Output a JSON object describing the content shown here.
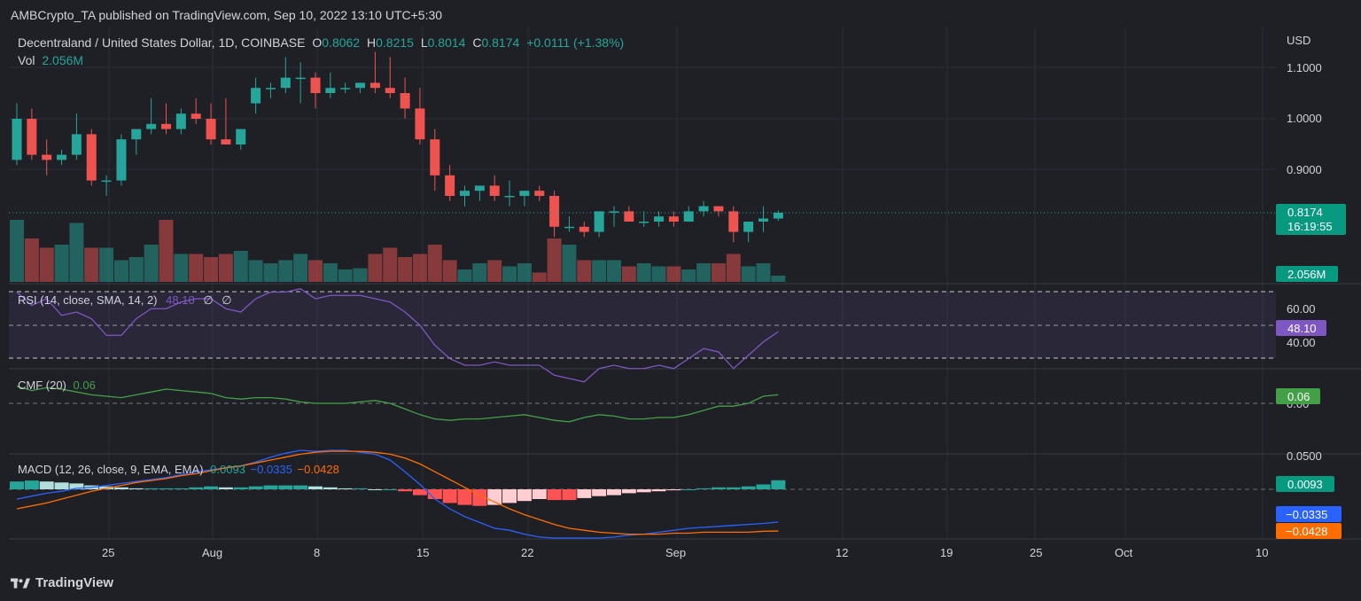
{
  "header": {
    "publisher": "AMBCrypto_TA published on TradingView.com, Sep 10, 2022 13:10 UTC+5:30"
  },
  "footer": {
    "brand": "TradingView",
    "logo_icon": "tradingview-logo-icon"
  },
  "legend": {
    "symbol": "Decentraland / United States Dollar, 1D, COINBASE",
    "o_label": "O",
    "o": "0.8062",
    "h_label": "H",
    "h": "0.8215",
    "l_label": "L",
    "l": "0.8014",
    "c_label": "C",
    "c": "0.8174",
    "change": "+0.0111 (+1.38%)",
    "vol_label": "Vol",
    "vol": "2.056M"
  },
  "currency": "USD",
  "price_axis": {
    "ticks": [
      "1.1000",
      "1.0000",
      "0.9000"
    ],
    "last_price": "0.8174",
    "countdown": "16:19:55",
    "last_volume": "2.056M"
  },
  "rsi": {
    "label": "RSI (14, close, SMA, 14, 2)",
    "value": "48.10",
    "na1": "∅",
    "na2": "∅",
    "ticks": [
      "60.00",
      "40.00"
    ]
  },
  "cmf": {
    "label": "CMF (20)",
    "value": "0.06",
    "tick": "0.00"
  },
  "macd": {
    "label": "MACD (12, 26, close, 9, EMA, EMA)",
    "hist_value": "0.0093",
    "macd_value": "−0.0335",
    "signal_value": "−0.0428",
    "tick": "0.0500",
    "hist_label": "0.0093",
    "macd_label": "−0.0335",
    "signal_label": "−0.0428"
  },
  "colors": {
    "up": "#26a69a",
    "down": "#ef5350",
    "rsi": "#7e57c2",
    "cmf": "#43a047",
    "macd": "#2962ff",
    "signal": "#ff6d00",
    "bg": "#1f2026"
  },
  "x_axis": {
    "labels": [
      "25",
      "Aug",
      "8",
      "15",
      "22",
      "Sep",
      "12",
      "19",
      "25",
      "Oct",
      "10"
    ]
  },
  "chart_data": [
    {
      "type": "candlestick",
      "title": "Decentraland / United States Dollar, 1D, COINBASE",
      "x": [
        "Jul 21",
        "Jul 22",
        "Jul 23",
        "Jul 24",
        "Jul 25",
        "Jul 26",
        "Jul 27",
        "Jul 28",
        "Jul 29",
        "Jul 30",
        "Jul 31",
        "Aug 1",
        "Aug 2",
        "Aug 3",
        "Aug 4",
        "Aug 5",
        "Aug 6",
        "Aug 7",
        "Aug 8",
        "Aug 9",
        "Aug 10",
        "Aug 11",
        "Aug 12",
        "Aug 13",
        "Aug 14",
        "Aug 15",
        "Aug 16",
        "Aug 17",
        "Aug 18",
        "Aug 19",
        "Aug 20",
        "Aug 21",
        "Aug 22",
        "Aug 23",
        "Aug 24",
        "Aug 25",
        "Aug 26",
        "Aug 27",
        "Aug 28",
        "Aug 29",
        "Aug 30",
        "Aug 31",
        "Sep 1",
        "Sep 2",
        "Sep 3",
        "Sep 4",
        "Sep 5",
        "Sep 6",
        "Sep 7",
        "Sep 8",
        "Sep 9",
        "Sep 10"
      ],
      "open": [
        0.92,
        1.0,
        0.93,
        0.92,
        0.93,
        0.97,
        0.88,
        0.88,
        0.96,
        0.98,
        0.99,
        0.98,
        1.01,
        1.0,
        0.96,
        0.95,
        1.03,
        1.06,
        1.06,
        1.08,
        1.08,
        1.05,
        1.06,
        1.06,
        1.07,
        1.06,
        1.05,
        1.02,
        0.96,
        0.89,
        0.85,
        0.86,
        0.87,
        0.85,
        0.85,
        0.86,
        0.85,
        0.79,
        0.79,
        0.78,
        0.82,
        0.82,
        0.8,
        0.8,
        0.81,
        0.8,
        0.82,
        0.83,
        0.82,
        0.78,
        0.8,
        0.806
      ],
      "high": [
        1.03,
        1.02,
        0.96,
        0.94,
        1.01,
        0.98,
        0.89,
        0.97,
        0.98,
        1.04,
        1.03,
        1.02,
        1.04,
        1.03,
        1.04,
        0.98,
        1.08,
        1.07,
        1.12,
        1.11,
        1.09,
        1.09,
        1.07,
        1.07,
        1.13,
        1.12,
        1.08,
        1.06,
        0.98,
        0.91,
        0.87,
        0.87,
        0.89,
        0.88,
        0.86,
        0.87,
        0.86,
        0.81,
        0.8,
        0.82,
        0.83,
        0.83,
        0.82,
        0.82,
        0.82,
        0.83,
        0.84,
        0.83,
        0.83,
        0.8,
        0.83,
        0.8215
      ],
      "low": [
        0.91,
        0.92,
        0.89,
        0.91,
        0.92,
        0.87,
        0.85,
        0.87,
        0.93,
        0.97,
        0.97,
        0.97,
        0.99,
        0.95,
        0.95,
        0.94,
        1.01,
        1.04,
        1.05,
        1.03,
        1.02,
        1.04,
        1.05,
        1.05,
        1.05,
        1.04,
        1.0,
        0.95,
        0.86,
        0.84,
        0.83,
        0.84,
        0.84,
        0.83,
        0.83,
        0.84,
        0.77,
        0.78,
        0.77,
        0.77,
        0.79,
        0.8,
        0.79,
        0.79,
        0.79,
        0.8,
        0.81,
        0.81,
        0.76,
        0.76,
        0.78,
        0.8014
      ],
      "close": [
        1.0,
        0.93,
        0.92,
        0.93,
        0.97,
        0.88,
        0.88,
        0.96,
        0.98,
        0.99,
        0.98,
        1.01,
        1.0,
        0.96,
        0.95,
        0.98,
        1.06,
        1.06,
        1.08,
        1.08,
        1.05,
        1.06,
        1.06,
        1.07,
        1.06,
        1.05,
        1.02,
        0.96,
        0.89,
        0.85,
        0.86,
        0.87,
        0.85,
        0.85,
        0.86,
        0.85,
        0.79,
        0.79,
        0.78,
        0.82,
        0.82,
        0.8,
        0.8,
        0.81,
        0.8,
        0.82,
        0.83,
        0.82,
        0.78,
        0.8,
        0.806,
        0.8174
      ],
      "volume_relative": [
        1.0,
        0.7,
        0.55,
        0.6,
        0.95,
        0.55,
        0.55,
        0.35,
        0.4,
        0.6,
        1.0,
        0.45,
        0.45,
        0.4,
        0.45,
        0.5,
        0.35,
        0.3,
        0.35,
        0.45,
        0.35,
        0.3,
        0.2,
        0.22,
        0.45,
        0.55,
        0.4,
        0.45,
        0.6,
        0.35,
        0.2,
        0.3,
        0.35,
        0.25,
        0.3,
        0.15,
        0.7,
        0.6,
        0.35,
        0.35,
        0.35,
        0.25,
        0.3,
        0.25,
        0.25,
        0.2,
        0.3,
        0.3,
        0.45,
        0.25,
        0.3,
        0.1
      ],
      "ylim": [
        0.77,
        1.14
      ],
      "currency": "USD"
    },
    {
      "type": "line",
      "title": "RSI (14, close, SMA, 14, 2)",
      "values": [
        60,
        56,
        58,
        53,
        54,
        52,
        47,
        47,
        52,
        55,
        55,
        57,
        58,
        58,
        55,
        54,
        58,
        60,
        60,
        61,
        58,
        59,
        59,
        59,
        58,
        57,
        54,
        50,
        44,
        40,
        38,
        38,
        39,
        38,
        38,
        38,
        35,
        34,
        33,
        37,
        38,
        37,
        37,
        38,
        37,
        40,
        43,
        42,
        37,
        41,
        45,
        48.1
      ],
      "levels": [
        60,
        40
      ],
      "ylim": [
        30,
        70
      ]
    },
    {
      "type": "line",
      "title": "CMF (20)",
      "values": [
        0.12,
        0.09,
        0.11,
        0.1,
        0.08,
        0.06,
        0.05,
        0.04,
        0.06,
        0.08,
        0.1,
        0.09,
        0.08,
        0.07,
        0.04,
        0.03,
        0.04,
        0.04,
        0.03,
        0.01,
        0.0,
        0.0,
        0.0,
        0.01,
        0.02,
        0.0,
        -0.04,
        -0.08,
        -0.11,
        -0.12,
        -0.11,
        -0.11,
        -0.1,
        -0.09,
        -0.08,
        -0.1,
        -0.12,
        -0.13,
        -0.1,
        -0.08,
        -0.09,
        -0.11,
        -0.11,
        -0.1,
        -0.1,
        -0.08,
        -0.05,
        -0.02,
        -0.02,
        0.0,
        0.05,
        0.06
      ],
      "ylim": [
        -0.2,
        0.2
      ]
    },
    {
      "type": "bar",
      "title": "MACD (12, 26, close, 9, EMA, EMA)",
      "histogram": [
        0.008,
        0.009,
        0.008,
        0.007,
        0.006,
        0.004,
        0.003,
        0.002,
        0.001,
        0.001,
        0.001,
        0.001,
        0.002,
        0.003,
        0.002,
        0.002,
        0.003,
        0.004,
        0.004,
        0.004,
        0.003,
        0.002,
        0.001,
        0.001,
        0.0,
        0.0,
        -0.002,
        -0.006,
        -0.01,
        -0.014,
        -0.016,
        -0.017,
        -0.016,
        -0.014,
        -0.012,
        -0.01,
        -0.011,
        -0.011,
        -0.009,
        -0.007,
        -0.006,
        -0.004,
        -0.003,
        -0.002,
        -0.001,
        0.0,
        0.001,
        0.002,
        0.002,
        0.003,
        0.005,
        0.0093
      ],
      "macd": [
        -0.01,
        -0.007,
        -0.004,
        -0.002,
        0.001,
        0.002,
        0.004,
        0.006,
        0.008,
        0.01,
        0.012,
        0.015,
        0.018,
        0.02,
        0.022,
        0.024,
        0.028,
        0.033,
        0.037,
        0.04,
        0.039,
        0.04,
        0.04,
        0.038,
        0.036,
        0.03,
        0.018,
        0.005,
        -0.01,
        -0.02,
        -0.028,
        -0.034,
        -0.04,
        -0.042,
        -0.046,
        -0.049,
        -0.05,
        -0.05,
        -0.05,
        -0.05,
        -0.049,
        -0.047,
        -0.046,
        -0.044,
        -0.042,
        -0.04,
        -0.039,
        -0.038,
        -0.037,
        -0.036,
        -0.035,
        -0.0335
      ],
      "signal": [
        -0.02,
        -0.017,
        -0.014,
        -0.01,
        -0.006,
        -0.002,
        0.001,
        0.004,
        0.007,
        0.009,
        0.011,
        0.014,
        0.016,
        0.019,
        0.022,
        0.024,
        0.027,
        0.03,
        0.033,
        0.036,
        0.038,
        0.039,
        0.039,
        0.039,
        0.038,
        0.036,
        0.032,
        0.026,
        0.018,
        0.01,
        0.002,
        -0.006,
        -0.013,
        -0.02,
        -0.026,
        -0.031,
        -0.036,
        -0.04,
        -0.042,
        -0.044,
        -0.045,
        -0.046,
        -0.046,
        -0.046,
        -0.045,
        -0.045,
        -0.044,
        -0.044,
        -0.044,
        -0.044,
        -0.043,
        -0.0428
      ],
      "ylim": [
        -0.055,
        0.055
      ]
    }
  ]
}
